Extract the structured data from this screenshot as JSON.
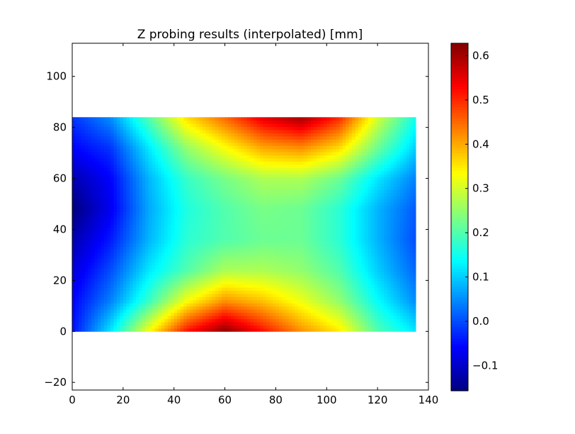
{
  "chart_data": {
    "type": "heatmap",
    "title": "Z probing results (interpolated) [mm]",
    "xlabel": "",
    "ylabel": "",
    "xlim": [
      0,
      140
    ],
    "ylim": [
      -23,
      113
    ],
    "xticks": [
      0,
      20,
      40,
      60,
      80,
      100,
      120,
      140
    ],
    "yticks": [
      -20,
      0,
      20,
      40,
      60,
      80,
      100
    ],
    "colormap": "jet",
    "color_range": [
      -0.157,
      0.628
    ],
    "colorbar_ticks": [
      -0.1,
      0.0,
      0.1,
      0.2,
      0.3,
      0.4,
      0.5,
      0.6
    ],
    "colorbar_tick_labels": [
      "−0.1",
      "0.0",
      "0.1",
      "0.2",
      "0.3",
      "0.4",
      "0.5",
      "0.6"
    ],
    "grid": false,
    "grid_x": [
      0,
      15,
      30,
      45,
      60,
      75,
      90,
      105,
      120,
      135
    ],
    "grid_y": [
      0,
      12,
      24,
      36,
      48,
      60,
      72,
      84
    ],
    "z": [
      [
        -0.05,
        0.12,
        0.33,
        0.52,
        0.62,
        0.52,
        0.42,
        0.35,
        0.2,
        0.12
      ],
      [
        -0.06,
        0.04,
        0.18,
        0.33,
        0.42,
        0.38,
        0.32,
        0.25,
        0.14,
        0.05
      ],
      [
        -0.09,
        0.0,
        0.12,
        0.2,
        0.27,
        0.27,
        0.25,
        0.2,
        0.1,
        0.02
      ],
      [
        -0.12,
        -0.04,
        0.08,
        0.17,
        0.2,
        0.22,
        0.22,
        0.17,
        0.08,
        0.0
      ],
      [
        -0.16,
        -0.07,
        0.07,
        0.16,
        0.2,
        0.23,
        0.22,
        0.17,
        0.08,
        0.01
      ],
      [
        -0.12,
        -0.06,
        0.08,
        0.18,
        0.23,
        0.27,
        0.27,
        0.22,
        0.12,
        0.04
      ],
      [
        -0.06,
        -0.02,
        0.12,
        0.25,
        0.33,
        0.4,
        0.42,
        0.36,
        0.22,
        0.1
      ],
      [
        -0.02,
        0.05,
        0.2,
        0.36,
        0.45,
        0.55,
        0.6,
        0.5,
        0.3,
        0.15
      ]
    ]
  }
}
